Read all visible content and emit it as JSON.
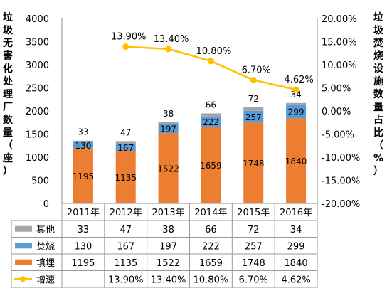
{
  "chart_data": {
    "type": "bar",
    "stacked": true,
    "categories": [
      "2011年",
      "2012年",
      "2013年",
      "2014年",
      "2015年",
      "2016年"
    ],
    "series": [
      {
        "name": "填埋",
        "values": [
          1195,
          1135,
          1522,
          1659,
          1748,
          1840
        ],
        "color": "#ED7D31",
        "axis": "left"
      },
      {
        "name": "焚烧",
        "values": [
          130,
          167,
          197,
          222,
          257,
          299
        ],
        "color": "#5B9BD5",
        "axis": "left"
      },
      {
        "name": "其他",
        "values": [
          33,
          47,
          38,
          66,
          72,
          34
        ],
        "color": "#A5A5A5",
        "axis": "left"
      }
    ],
    "line_series": {
      "name": "增速",
      "values": [
        null,
        13.9,
        13.4,
        10.8,
        6.7,
        4.62
      ],
      "labels": [
        "",
        "13.90%",
        "13.40%",
        "10.80%",
        "6.70%",
        "4.62%"
      ],
      "color": "#FFC000",
      "axis": "right"
    },
    "ylabel": "垃圾无害化处理厂数量（座）",
    "y2label": "垃圾焚烧设施数量占比（%）",
    "ylim": [
      0,
      4000
    ],
    "yticks": [
      "0",
      "500",
      "1000",
      "1500",
      "2000",
      "2500",
      "3000",
      "3500",
      "4000"
    ],
    "y2lim": [
      -20,
      20
    ],
    "y2ticks": [
      "-20.00%",
      "-15.00%",
      "-10.00%",
      "-5.00%",
      "0.00%",
      "5.00%",
      "10.00%",
      "15.00%",
      "20.00%"
    ],
    "grid": false,
    "legend": "data-table-below",
    "table_rows": [
      {
        "name": "其他",
        "values": [
          "33",
          "47",
          "38",
          "66",
          "72",
          "34"
        ],
        "color": "#A5A5A5",
        "marker": "square"
      },
      {
        "name": "焚烧",
        "values": [
          "130",
          "167",
          "197",
          "222",
          "257",
          "299"
        ],
        "color": "#5B9BD5",
        "marker": "square"
      },
      {
        "name": "填埋",
        "values": [
          "1195",
          "1135",
          "1522",
          "1659",
          "1748",
          "1840"
        ],
        "color": "#ED7D31",
        "marker": "square"
      },
      {
        "name": "增速",
        "values": [
          "",
          "13.90%",
          "13.40%",
          "10.80%",
          "6.70%",
          "4.62%"
        ],
        "color": "#FFC000",
        "marker": "line"
      }
    ]
  }
}
